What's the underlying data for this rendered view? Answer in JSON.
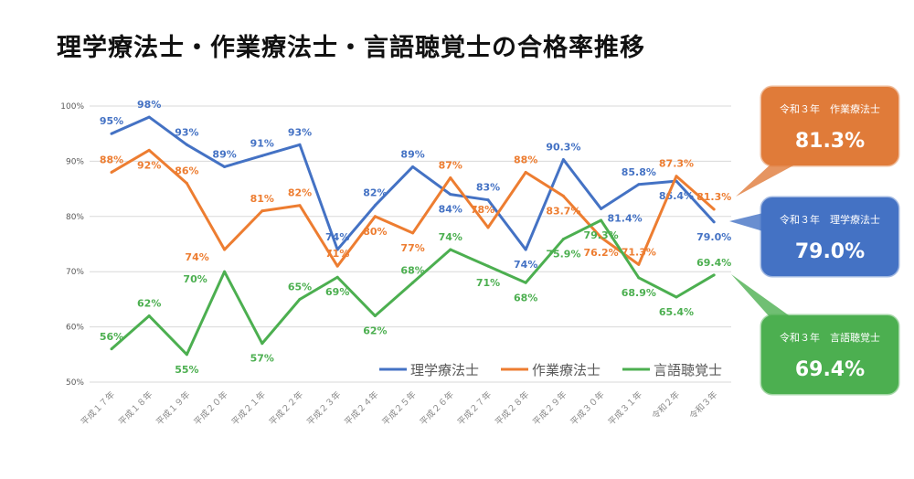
{
  "chart_data": {
    "type": "line",
    "title": "理学療法士・作業療法士・言語聴覚士の合格率推移",
    "categories": [
      "平成１７年",
      "平成１８年",
      "平成１９年",
      "平成２０年",
      "平成２１年",
      "平成２２年",
      "平成２３年",
      "平成２４年",
      "平成２５年",
      "平成２６年",
      "平成２７年",
      "平成２８年",
      "平成２９年",
      "平成３０年",
      "平成３１年",
      "令和２年",
      "令和３年"
    ],
    "ylim": [
      50,
      100
    ],
    "yticks": [
      "50%",
      "60%",
      "70%",
      "80%",
      "90%",
      "100%"
    ],
    "grid": true,
    "legend": "bottom-right",
    "series": [
      {
        "name": "理学療法士",
        "color": "#4472C4",
        "values": [
          95,
          98,
          93,
          89,
          91,
          93,
          74,
          82,
          89,
          84,
          83,
          74,
          90.3,
          81.4,
          85.8,
          86.4,
          79.0
        ],
        "labels": [
          "95%",
          "98%",
          "93%",
          "89%",
          "91%",
          "93%",
          "74%",
          "82%",
          "89%",
          "84%",
          "83%",
          "74%",
          "90.3%",
          "81.4%",
          "85.8%",
          "86.4%",
          "79.0%"
        ]
      },
      {
        "name": "作業療法士",
        "color": "#ED7D31",
        "values": [
          88,
          92,
          86,
          74,
          81,
          82,
          71,
          80,
          77,
          87,
          78,
          88,
          83.7,
          76.2,
          71.3,
          87.3,
          81.3
        ],
        "labels": [
          "88%",
          "92%",
          "86%",
          "74%",
          "81%",
          "82%",
          "71%",
          "80%",
          "77%",
          "87%",
          "78%",
          "88%",
          "83.7%",
          "76.2%",
          "71.3%",
          "87.3%",
          "81.3%"
        ]
      },
      {
        "name": "言語聴覚士",
        "color": "#4CAF50",
        "values": [
          56,
          62,
          55,
          70,
          57,
          65,
          69,
          62,
          68,
          74,
          71,
          68,
          75.9,
          79.3,
          68.9,
          65.4,
          69.4
        ],
        "labels": [
          "56%",
          "62%",
          "55%",
          "70%",
          "57%",
          "65%",
          "69%",
          "62%",
          "68%",
          "74%",
          "71%",
          "68%",
          "75.9%",
          "79.3%",
          "68.9%",
          "65.4%",
          "69.4%"
        ]
      }
    ],
    "callouts": [
      {
        "label": "令和３年　作業療法士",
        "value": "81.3%",
        "color": "#E07B39"
      },
      {
        "label": "令和３年　理学療法士",
        "value": "79.0%",
        "color": "#4472C4"
      },
      {
        "label": "令和３年　言語聴覚士",
        "value": "69.4%",
        "color": "#4CAF50"
      }
    ]
  }
}
